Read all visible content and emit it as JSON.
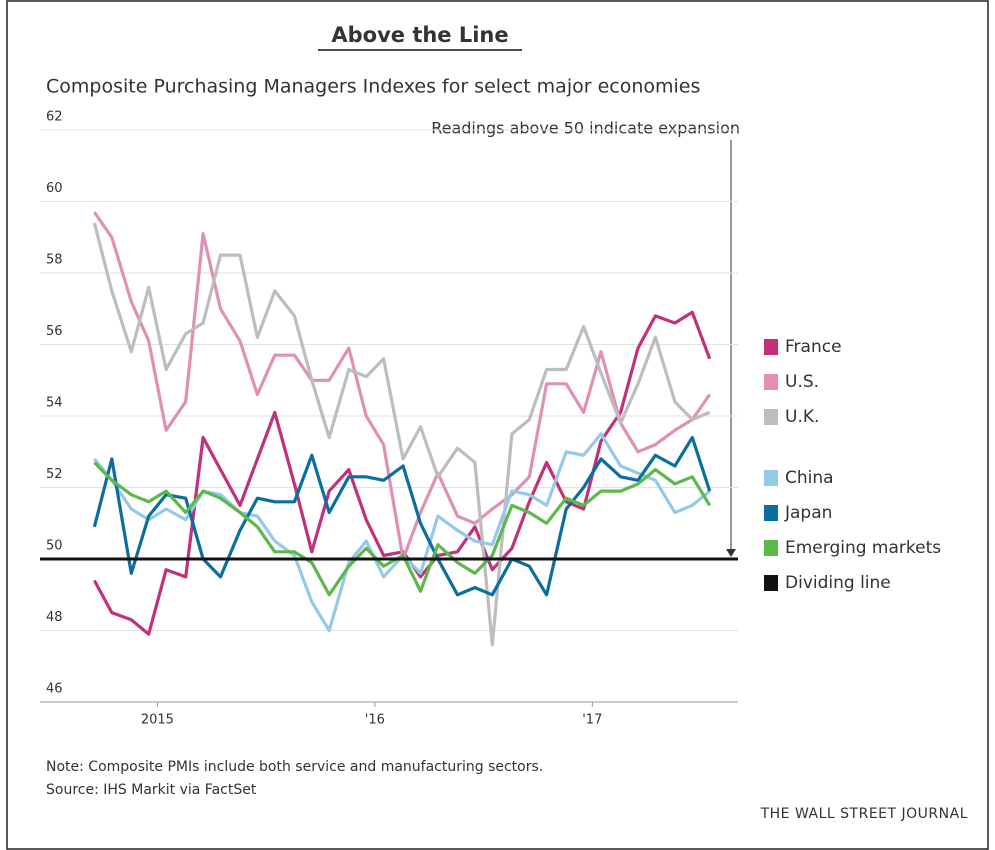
{
  "chart_data": {
    "type": "line",
    "title": "Above the Line",
    "subtitle": "Composite Purchasing Managers Indexes for select major economies",
    "annotation": "Readings above 50 indicate expansion",
    "note": "Note: Composite PMIs include both service and manufacturing sectors.",
    "source": "Source: IHS Markit via FactSet",
    "credit": "THE WALL STREET JOURNAL",
    "x": [
      2014.71,
      2014.79,
      2014.88,
      2014.96,
      2015.04,
      2015.13,
      2015.21,
      2015.29,
      2015.38,
      2015.46,
      2015.54,
      2015.63,
      2015.71,
      2015.79,
      2015.88,
      2015.96,
      2016.04,
      2016.13,
      2016.21,
      2016.29,
      2016.38,
      2016.46,
      2016.54,
      2016.63,
      2016.71,
      2016.79,
      2016.88,
      2016.96,
      2017.04,
      2017.13,
      2017.21,
      2017.29,
      2017.38,
      2017.46,
      2017.54
    ],
    "series": [
      {
        "name": "France",
        "color": "#c2307a",
        "values": [
          49.4,
          48.5,
          48.3,
          47.9,
          49.7,
          49.5,
          53.4,
          52.5,
          51.5,
          52.8,
          54.1,
          52.1,
          50.2,
          51.9,
          52.5,
          51.1,
          50.1,
          50.2,
          49.5,
          50.1,
          50.2,
          50.9,
          49.7,
          50.3,
          51.6,
          52.7,
          51.6,
          51.4,
          53.3,
          54.1,
          55.9,
          56.8,
          56.6,
          56.9,
          55.6
        ]
      },
      {
        "name": "U.S.",
        "color": "#e090b5",
        "values": [
          59.7,
          59.0,
          57.2,
          56.1,
          53.6,
          54.4,
          59.1,
          57.0,
          56.1,
          54.6,
          55.7,
          55.7,
          55.0,
          55.0,
          55.9,
          54.0,
          53.2,
          50.0,
          51.3,
          52.4,
          51.2,
          51.0,
          51.4,
          51.8,
          52.3,
          54.9,
          54.9,
          54.1,
          55.8,
          53.8,
          53.0,
          53.2,
          53.6,
          53.9,
          54.6
        ]
      },
      {
        "name": "U.K.",
        "color": "#bdbdbd",
        "values": [
          59.4,
          57.5,
          55.8,
          57.6,
          55.3,
          56.3,
          56.6,
          58.5,
          58.5,
          56.2,
          57.5,
          56.8,
          55.0,
          53.4,
          55.3,
          55.1,
          55.6,
          52.8,
          53.7,
          52.3,
          53.1,
          52.7,
          47.6,
          53.5,
          53.9,
          55.3,
          55.3,
          56.5,
          55.2,
          53.8,
          54.9,
          56.2,
          54.4,
          53.9,
          54.1
        ]
      },
      {
        "name": "China",
        "color": "#94c9ec",
        "values": [
          52.8,
          52.2,
          51.4,
          51.1,
          51.4,
          51.1,
          51.9,
          51.8,
          51.3,
          51.2,
          50.5,
          50.1,
          48.8,
          48.0,
          49.9,
          50.5,
          49.5,
          50.1,
          49.6,
          51.2,
          50.8,
          50.5,
          50.4,
          51.9,
          51.8,
          51.5,
          53.0,
          52.9,
          53.5,
          52.6,
          52.4,
          52.2,
          51.3,
          51.5,
          51.9
        ]
      },
      {
        "name": "Japan",
        "color": "#0a6f9e",
        "values": [
          50.9,
          52.8,
          49.6,
          51.2,
          51.8,
          51.7,
          50.0,
          49.5,
          50.8,
          51.7,
          51.6,
          51.6,
          52.9,
          51.3,
          52.3,
          52.3,
          52.2,
          52.6,
          51.0,
          50.0,
          49.0,
          49.2,
          49.0,
          50.0,
          49.8,
          49.0,
          51.4,
          52.0,
          52.8,
          52.3,
          52.2,
          52.9,
          52.6,
          53.4,
          51.9
        ]
      },
      {
        "name": "Emerging markets",
        "color": "#5db84a",
        "values": [
          52.7,
          52.2,
          51.8,
          51.6,
          51.9,
          51.3,
          51.9,
          51.7,
          51.3,
          50.9,
          50.2,
          50.2,
          49.9,
          49.0,
          49.8,
          50.3,
          49.8,
          50.1,
          49.1,
          50.4,
          49.9,
          49.6,
          50.1,
          51.5,
          51.3,
          51.0,
          51.7,
          51.5,
          51.9,
          51.9,
          52.1,
          52.5,
          52.1,
          52.3,
          51.5
        ]
      }
    ],
    "reference_line": {
      "name": "Dividing line",
      "value": 50,
      "color": "#111111"
    },
    "xlim": [
      2014.46,
      2017.67
    ],
    "xticks": [
      {
        "value": 2015,
        "label": "2015"
      },
      {
        "value": 2016,
        "label": "'16"
      },
      {
        "value": 2017,
        "label": "'17"
      }
    ],
    "ylim": [
      46,
      62
    ],
    "yticks": [
      46,
      48,
      50,
      52,
      54,
      56,
      58,
      60,
      62
    ],
    "grid": true
  }
}
